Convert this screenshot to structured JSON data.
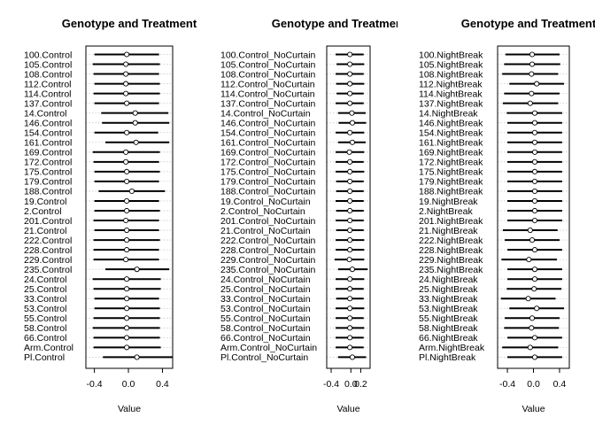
{
  "chart_data": [
    {
      "type": "dotplot-interval",
      "title": "Genotype and Treatment",
      "xlabel": "Value",
      "xlim": [
        -0.5,
        0.52
      ],
      "xticks": [
        -0.4,
        0.0,
        0.4
      ],
      "xtick_labels": [
        "-0.4",
        "0.0",
        "0.4"
      ],
      "grid": true,
      "rows": [
        {
          "label": "100.Control",
          "est": -0.02,
          "lo": -0.4,
          "hi": 0.36
        },
        {
          "label": "105.Control",
          "est": -0.03,
          "lo": -0.42,
          "hi": 0.37
        },
        {
          "label": "108.Control",
          "est": -0.03,
          "lo": -0.41,
          "hi": 0.36
        },
        {
          "label": "112.Control",
          "est": -0.03,
          "lo": -0.4,
          "hi": 0.37
        },
        {
          "label": "114.Control",
          "est": -0.03,
          "lo": -0.41,
          "hi": 0.37
        },
        {
          "label": "137.Control",
          "est": -0.02,
          "lo": -0.4,
          "hi": 0.36
        },
        {
          "label": "14.Control",
          "est": 0.08,
          "lo": -0.32,
          "hi": 0.47
        },
        {
          "label": "146.Control",
          "est": 0.08,
          "lo": -0.31,
          "hi": 0.48
        },
        {
          "label": "154.Control",
          "est": -0.02,
          "lo": -0.4,
          "hi": 0.35
        },
        {
          "label": "161.Control",
          "est": 0.09,
          "lo": -0.27,
          "hi": 0.48
        },
        {
          "label": "169.Control",
          "est": -0.03,
          "lo": -0.42,
          "hi": 0.37
        },
        {
          "label": "172.Control",
          "est": -0.03,
          "lo": -0.41,
          "hi": 0.36
        },
        {
          "label": "175.Control",
          "est": -0.02,
          "lo": -0.4,
          "hi": 0.37
        },
        {
          "label": "179.Control",
          "est": -0.02,
          "lo": -0.4,
          "hi": 0.36
        },
        {
          "label": "188.Control",
          "est": 0.04,
          "lo": -0.35,
          "hi": 0.43
        },
        {
          "label": "19.Control",
          "est": -0.02,
          "lo": -0.4,
          "hi": 0.36
        },
        {
          "label": "2.Control",
          "est": -0.02,
          "lo": -0.4,
          "hi": 0.37
        },
        {
          "label": "201.Control",
          "est": -0.03,
          "lo": -0.41,
          "hi": 0.36
        },
        {
          "label": "21.Control",
          "est": -0.02,
          "lo": -0.4,
          "hi": 0.36
        },
        {
          "label": "222.Control",
          "est": -0.02,
          "lo": -0.41,
          "hi": 0.37
        },
        {
          "label": "228.Control",
          "est": -0.02,
          "lo": -0.41,
          "hi": 0.36
        },
        {
          "label": "229.Control",
          "est": -0.03,
          "lo": -0.41,
          "hi": 0.36
        },
        {
          "label": "235.Control",
          "est": 0.1,
          "lo": -0.27,
          "hi": 0.48
        },
        {
          "label": "24.Control",
          "est": -0.02,
          "lo": -0.42,
          "hi": 0.38
        },
        {
          "label": "25.Control",
          "est": -0.02,
          "lo": -0.41,
          "hi": 0.38
        },
        {
          "label": "33.Control",
          "est": -0.02,
          "lo": -0.4,
          "hi": 0.36
        },
        {
          "label": "53.Control",
          "est": -0.02,
          "lo": -0.4,
          "hi": 0.37
        },
        {
          "label": "55.Control",
          "est": -0.02,
          "lo": -0.41,
          "hi": 0.37
        },
        {
          "label": "58.Control",
          "est": -0.02,
          "lo": -0.42,
          "hi": 0.37
        },
        {
          "label": "66.Control",
          "est": -0.02,
          "lo": -0.41,
          "hi": 0.37
        },
        {
          "label": "Arm.Control",
          "est": -0.02,
          "lo": -0.41,
          "hi": 0.38
        },
        {
          "label": "Pl.Control",
          "est": 0.1,
          "lo": -0.3,
          "hi": 0.52
        }
      ]
    },
    {
      "type": "dotplot-interval",
      "title": "Genotype and Treatment",
      "xlabel": "Value",
      "xlim": [
        -0.49,
        0.39
      ],
      "xticks": [
        -0.4,
        0.0,
        0.2
      ],
      "xtick_labels": [
        "-0.4",
        "0.0",
        "0.2"
      ],
      "grid": true,
      "rows": [
        {
          "label": "100.Control_NoCurtain",
          "est": -0.02,
          "lo": -0.31,
          "hi": 0.26
        },
        {
          "label": "105.Control_NoCurtain",
          "est": -0.02,
          "lo": -0.29,
          "hi": 0.27
        },
        {
          "label": "108.Control_NoCurtain",
          "est": -0.02,
          "lo": -0.31,
          "hi": 0.26
        },
        {
          "label": "112.Control_NoCurtain",
          "est": -0.02,
          "lo": -0.3,
          "hi": 0.27
        },
        {
          "label": "114.Control_NoCurtain",
          "est": -0.02,
          "lo": -0.29,
          "hi": 0.26
        },
        {
          "label": "137.Control_NoCurtain",
          "est": -0.02,
          "lo": -0.31,
          "hi": 0.26
        },
        {
          "label": "14.Control_NoCurtain",
          "est": 0.02,
          "lo": -0.26,
          "hi": 0.3
        },
        {
          "label": "146.Control_NoCurtain",
          "est": 0.03,
          "lo": -0.25,
          "hi": 0.31
        },
        {
          "label": "154.Control_NoCurtain",
          "est": -0.02,
          "lo": -0.31,
          "hi": 0.27
        },
        {
          "label": "161.Control_NoCurtain",
          "est": 0.03,
          "lo": -0.26,
          "hi": 0.3
        },
        {
          "label": "169.Control_NoCurtain",
          "est": -0.03,
          "lo": -0.31,
          "hi": 0.27
        },
        {
          "label": "172.Control_NoCurtain",
          "est": -0.02,
          "lo": -0.31,
          "hi": 0.26
        },
        {
          "label": "175.Control_NoCurtain",
          "est": -0.02,
          "lo": -0.31,
          "hi": 0.27
        },
        {
          "label": "179.Control_NoCurtain",
          "est": -0.02,
          "lo": -0.3,
          "hi": 0.26
        },
        {
          "label": "188.Control_NoCurtain",
          "est": -0.02,
          "lo": -0.3,
          "hi": 0.26
        },
        {
          "label": "19.Control_NoCurtain",
          "est": -0.02,
          "lo": -0.31,
          "hi": 0.26
        },
        {
          "label": "2.Control_NoCurtain",
          "est": -0.02,
          "lo": -0.3,
          "hi": 0.26
        },
        {
          "label": "201.Control_NoCurtain",
          "est": -0.02,
          "lo": -0.31,
          "hi": 0.26
        },
        {
          "label": "21.Control_NoCurtain",
          "est": -0.02,
          "lo": -0.3,
          "hi": 0.26
        },
        {
          "label": "222.Control_NoCurtain",
          "est": -0.02,
          "lo": -0.31,
          "hi": 0.27
        },
        {
          "label": "228.Control_NoCurtain",
          "est": -0.02,
          "lo": -0.31,
          "hi": 0.27
        },
        {
          "label": "229.Control_NoCurtain",
          "est": -0.03,
          "lo": -0.33,
          "hi": 0.27
        },
        {
          "label": "235.Control_NoCurtain",
          "est": 0.03,
          "lo": -0.26,
          "hi": 0.34
        },
        {
          "label": "24.Control_NoCurtain",
          "est": -0.02,
          "lo": -0.31,
          "hi": 0.27
        },
        {
          "label": "25.Control_NoCurtain",
          "est": -0.02,
          "lo": -0.31,
          "hi": 0.26
        },
        {
          "label": "33.Control_NoCurtain",
          "est": -0.02,
          "lo": -0.3,
          "hi": 0.26
        },
        {
          "label": "53.Control_NoCurtain",
          "est": -0.02,
          "lo": -0.31,
          "hi": 0.27
        },
        {
          "label": "55.Control_NoCurtain",
          "est": -0.02,
          "lo": -0.31,
          "hi": 0.26
        },
        {
          "label": "58.Control_NoCurtain",
          "est": -0.02,
          "lo": -0.31,
          "hi": 0.27
        },
        {
          "label": "66.Control_NoCurtain",
          "est": -0.02,
          "lo": -0.31,
          "hi": 0.26
        },
        {
          "label": "Arm.Control_NoCurtain",
          "est": -0.02,
          "lo": -0.31,
          "hi": 0.26
        },
        {
          "label": "Pl.Control_NoCurtain",
          "est": 0.03,
          "lo": -0.26,
          "hi": 0.31
        }
      ]
    },
    {
      "type": "dotplot-interval",
      "title": "Genotype and Treatment",
      "xlabel": "Value",
      "xlim": [
        -0.55,
        0.55
      ],
      "xticks": [
        -0.4,
        0.0,
        0.4
      ],
      "xtick_labels": [
        "-0.4",
        "0.0",
        "0.4"
      ],
      "grid": true,
      "rows": [
        {
          "label": "100.NightBreak",
          "est": -0.02,
          "lo": -0.43,
          "hi": 0.4
        },
        {
          "label": "105.NightBreak",
          "est": -0.02,
          "lo": -0.45,
          "hi": 0.41
        },
        {
          "label": "108.NightBreak",
          "est": -0.03,
          "lo": -0.48,
          "hi": 0.38
        },
        {
          "label": "112.NightBreak",
          "est": 0.05,
          "lo": -0.37,
          "hi": 0.47
        },
        {
          "label": "114.NightBreak",
          "est": -0.03,
          "lo": -0.45,
          "hi": 0.4
        },
        {
          "label": "137.NightBreak",
          "est": -0.05,
          "lo": -0.47,
          "hi": 0.38
        },
        {
          "label": "14.NightBreak",
          "est": 0.02,
          "lo": -0.41,
          "hi": 0.44
        },
        {
          "label": "146.NightBreak",
          "est": 0.02,
          "lo": -0.4,
          "hi": 0.44
        },
        {
          "label": "154.NightBreak",
          "est": 0.02,
          "lo": -0.4,
          "hi": 0.44
        },
        {
          "label": "161.NightBreak",
          "est": 0.02,
          "lo": -0.4,
          "hi": 0.44
        },
        {
          "label": "169.NightBreak",
          "est": 0.02,
          "lo": -0.4,
          "hi": 0.44
        },
        {
          "label": "172.NightBreak",
          "est": 0.02,
          "lo": -0.4,
          "hi": 0.44
        },
        {
          "label": "175.NightBreak",
          "est": 0.02,
          "lo": -0.4,
          "hi": 0.44
        },
        {
          "label": "179.NightBreak",
          "est": 0.02,
          "lo": -0.4,
          "hi": 0.44
        },
        {
          "label": "188.NightBreak",
          "est": 0.02,
          "lo": -0.4,
          "hi": 0.44
        },
        {
          "label": "19.NightBreak",
          "est": 0.02,
          "lo": -0.4,
          "hi": 0.44
        },
        {
          "label": "2.NightBreak",
          "est": 0.02,
          "lo": -0.4,
          "hi": 0.44
        },
        {
          "label": "201.NightBreak",
          "est": 0.02,
          "lo": -0.4,
          "hi": 0.44
        },
        {
          "label": "21.NightBreak",
          "est": -0.05,
          "lo": -0.47,
          "hi": 0.37
        },
        {
          "label": "222.NightBreak",
          "est": -0.02,
          "lo": -0.44,
          "hi": 0.4
        },
        {
          "label": "228.NightBreak",
          "est": 0.02,
          "lo": -0.4,
          "hi": 0.44
        },
        {
          "label": "229.NightBreak",
          "est": -0.07,
          "lo": -0.49,
          "hi": 0.36
        },
        {
          "label": "235.NightBreak",
          "est": 0.02,
          "lo": -0.4,
          "hi": 0.44
        },
        {
          "label": "24.NightBreak",
          "est": 0.02,
          "lo": -0.4,
          "hi": 0.44
        },
        {
          "label": "25.NightBreak",
          "est": 0.01,
          "lo": -0.41,
          "hi": 0.43
        },
        {
          "label": "33.NightBreak",
          "est": -0.08,
          "lo": -0.5,
          "hi": 0.34
        },
        {
          "label": "53.NightBreak",
          "est": 0.05,
          "lo": -0.37,
          "hi": 0.47
        },
        {
          "label": "55.NightBreak",
          "est": -0.02,
          "lo": -0.44,
          "hi": 0.4
        },
        {
          "label": "58.NightBreak",
          "est": -0.03,
          "lo": -0.45,
          "hi": 0.39
        },
        {
          "label": "66.NightBreak",
          "est": 0.02,
          "lo": -0.4,
          "hi": 0.44
        },
        {
          "label": "Arm.NightBreak",
          "est": -0.05,
          "lo": -0.48,
          "hi": 0.38
        },
        {
          "label": "Pl.NightBreak",
          "est": 0.02,
          "lo": -0.4,
          "hi": 0.44
        }
      ]
    }
  ]
}
